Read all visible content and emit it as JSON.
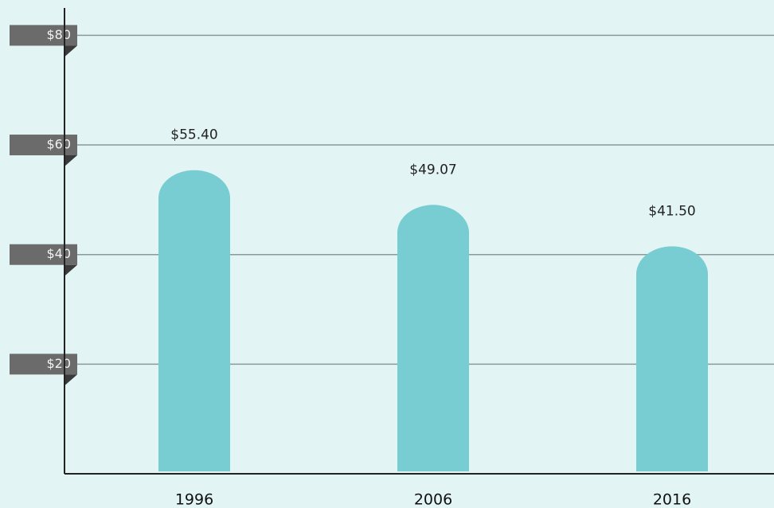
{
  "chart_data": {
    "type": "bar",
    "categories": [
      "1996",
      "2006",
      "2016"
    ],
    "values": [
      55.4,
      49.07,
      41.5
    ],
    "value_labels": [
      "$55.40",
      "$49.07",
      "$41.50"
    ],
    "color": "#78cdd2",
    "ylim": [
      0,
      85
    ],
    "yticks": [
      {
        "value": 20,
        "label": "$20"
      },
      {
        "value": 40,
        "label": "$40"
      },
      {
        "value": 60,
        "label": "$60"
      },
      {
        "value": 80,
        "label": "$80"
      }
    ],
    "grid": true
  }
}
